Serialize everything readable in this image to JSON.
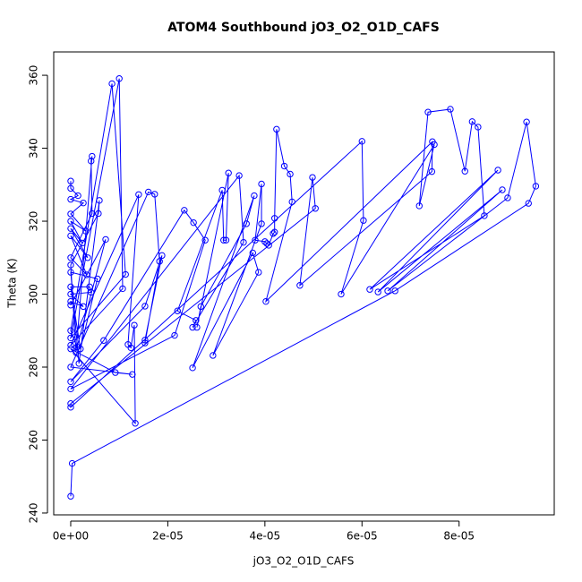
{
  "chart_data": {
    "type": "line",
    "title": "ATOM4 Southbound jO3_O2_O1D_CAFS",
    "xlabel": "jO3_O2_O1D_CAFS",
    "ylabel": "Theta (K)",
    "color": "#0000ff",
    "markers": true,
    "x": [
      0,
      0,
      1.5e-06,
      0,
      2.6e-06,
      0,
      3.1e-06,
      0,
      2.4e-06,
      0,
      3.5e-06,
      0,
      3.3e-06,
      0,
      4.4e-06,
      4.2e-06,
      4.4e-06,
      1.1e-06,
      0,
      5.7e-06,
      5.9e-06,
      1.7e-06,
      0,
      5.5e-06,
      2e-06,
      0,
      3.9e-06,
      4.2e-06,
      0,
      2.6e-06,
      0,
      0,
      7.2e-06,
      1.3e-06,
      0,
      8.5e-06,
      1.13e-05,
      0,
      1e-05,
      1.07e-05,
      0,
      1.4e-05,
      1.18e-05,
      1.24e-05,
      1.31e-05,
      1.33e-05,
      0,
      9.2e-06,
      1.27e-05,
      0,
      1.6e-05,
      1.73e-05,
      1.83e-05,
      1.53e-05,
      1.53e-05,
      1.88e-05,
      1.53e-05,
      0,
      6.8e-06,
      2.34e-05,
      2.53e-05,
      2.77e-05,
      2.14e-05,
      0,
      3.47e-05,
      3.56e-05,
      2.51e-05,
      2.58e-05,
      2.2e-05,
      3.12e-05,
      3.15e-05,
      3.2e-05,
      3.25e-05,
      2.6e-05,
      2.68e-05,
      3.62e-05,
      3.78e-05,
      2.51e-05,
      3.75e-05,
      3.87e-05,
      2.93e-05,
      3.93e-05,
      3.93e-05,
      3.8e-05,
      4e-05,
      4.04e-05,
      4.08e-05,
      4.17e-05,
      4.2e-05,
      4.2e-05,
      4.24e-05,
      4.4e-05,
      4.52e-05,
      4.56e-05,
      4.02e-05,
      7.45e-05,
      7.44e-05,
      4.72e-05,
      4.98e-05,
      5.04e-05,
      0,
      0,
      6e-05,
      6.03e-05,
      5.57e-05,
      7.49e-05,
      7.18e-05,
      7.36e-05,
      7.82e-05,
      8.12e-05,
      8.27e-05,
      8.39e-05,
      8.52e-05,
      6.16e-05,
      8.8e-05,
      6.33e-05,
      8.89e-05,
      6.53e-05,
      9e-05,
      9.39e-05,
      9.58e-05,
      9.43e-05,
      6.68e-05,
      3e-07,
      0
    ],
    "values": [
      331,
      329,
      327,
      326,
      325,
      322,
      317.3,
      320,
      314,
      318,
      310,
      316,
      305.3,
      310,
      322.1,
      336.5,
      337.8,
      284,
      308,
      322.1,
      325.7,
      281,
      306,
      304.2,
      285,
      302,
      302,
      300.5,
      300,
      296.6,
      298,
      297,
      315,
      285.5,
      290,
      357.7,
      305.4,
      288,
      359.1,
      301.5,
      286,
      327.3,
      286.2,
      285.3,
      291.5,
      264.6,
      285,
      278.5,
      278,
      280,
      328,
      327.4,
      309,
      286.6,
      287.4,
      310.6,
      296.7,
      276,
      287.3,
      323,
      319.6,
      314.8,
      288.7,
      274,
      332.5,
      314.2,
      290.9,
      292.8,
      295.4,
      328.5,
      314.8,
      314.8,
      333.2,
      290.9,
      296.6,
      319.3,
      327,
      279.8,
      311.3,
      306,
      283.2,
      319.3,
      330.2,
      314.8,
      314.4,
      313.9,
      313.4,
      316.6,
      317,
      320.8,
      345.2,
      335.1,
      332.9,
      325.3,
      298,
      341.8,
      333.6,
      302.4,
      332,
      323.5,
      270,
      269,
      341.9,
      320.2,
      300,
      341,
      324.2,
      349.9,
      350.7,
      333.7,
      347.3,
      345.8,
      321.5,
      301.3,
      334,
      300.6,
      328.6,
      300.9,
      326.4,
      347.2,
      329.6,
      324.9,
      300.9,
      253.6,
      244.6
    ],
    "xlim": [
      -3.5e-06,
      9.96e-05
    ],
    "ylim": [
      239.5,
      366.4
    ],
    "xticks": [
      {
        "value": 0,
        "label": "0e+00"
      },
      {
        "value": 2e-05,
        "label": "2e-05"
      },
      {
        "value": 4e-05,
        "label": "4e-05"
      },
      {
        "value": 6e-05,
        "label": "6e-05"
      },
      {
        "value": 8e-05,
        "label": "8e-05"
      }
    ],
    "yticks": [
      240,
      260,
      280,
      300,
      320,
      340,
      360
    ]
  }
}
